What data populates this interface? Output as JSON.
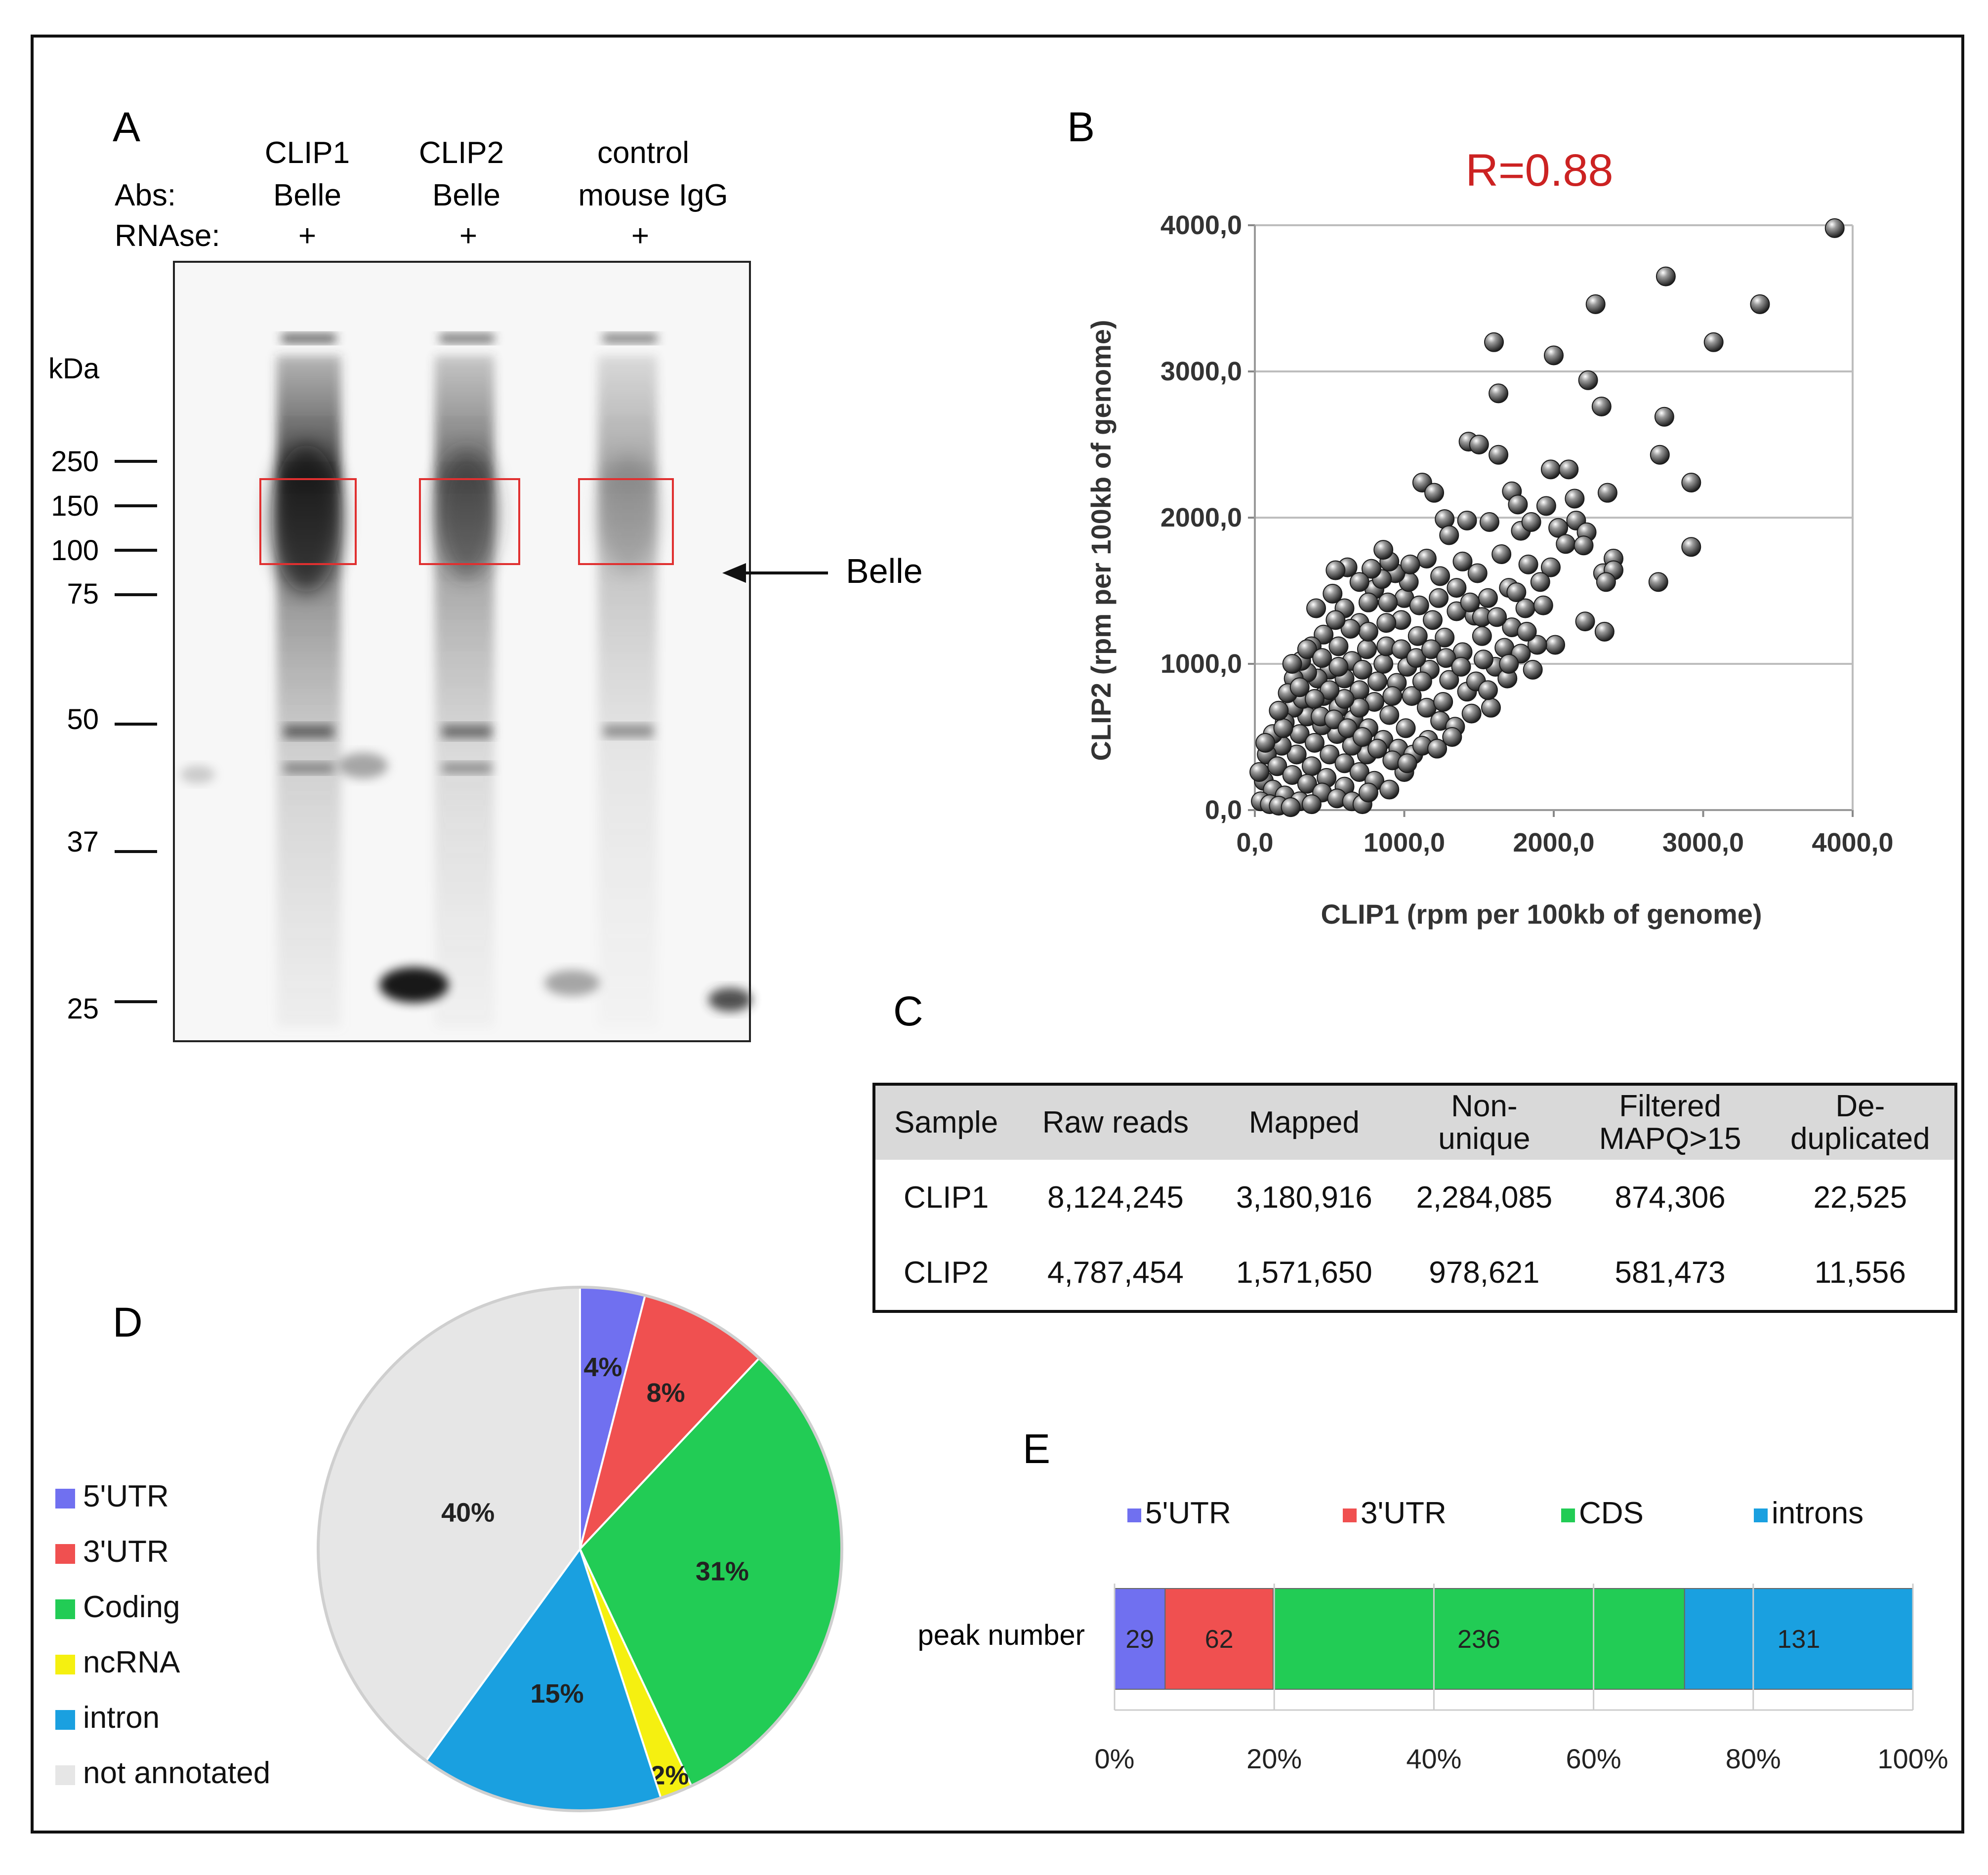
{
  "panels": {
    "a": "A",
    "b": "B",
    "c": "C",
    "d": "D",
    "e": "E"
  },
  "gel": {
    "row_labels": [
      "Abs:",
      "RNAse:"
    ],
    "lanes": [
      {
        "top": "CLIP1",
        "antibody": "Belle",
        "rnase": "+"
      },
      {
        "top": "CLIP2",
        "antibody": "Belle",
        "rnase": "+"
      },
      {
        "top": "control",
        "antibody": "mouse IgG",
        "rnase": "+"
      }
    ],
    "kda_label": "kDa",
    "markers": [
      "250",
      "150",
      "100",
      "75",
      "50",
      "37",
      "25"
    ],
    "arrow_label": "Belle",
    "highlight_color": "#e03030"
  },
  "chart_data": [
    {
      "type": "scatter",
      "panel": "B",
      "title": "R=0.88",
      "title_color": "#cc2222",
      "xlabel": "CLIP1 (rpm per 100kb of genome)",
      "ylabel": "CLIP2 (rpm per 100kb of genome)",
      "xlim": [
        0,
        4000
      ],
      "ylim": [
        0,
        4000
      ],
      "xticks": [
        "0,0",
        "1000,0",
        "2000,0",
        "3000,0",
        "4000,0"
      ],
      "yticks": [
        "0,0",
        "1000,0",
        "2000,0",
        "3000,0",
        "4000,0"
      ],
      "grid": true,
      "points": [
        [
          3880,
          3980
        ],
        [
          2750,
          3650
        ],
        [
          2280,
          3460
        ],
        [
          3380,
          3460
        ],
        [
          1600,
          3200
        ],
        [
          3070,
          3200
        ],
        [
          2000,
          3110
        ],
        [
          1630,
          2850
        ],
        [
          2230,
          2940
        ],
        [
          2320,
          2760
        ],
        [
          2740,
          2690
        ],
        [
          1430,
          2520
        ],
        [
          1500,
          2500
        ],
        [
          1630,
          2430
        ],
        [
          2710,
          2430
        ],
        [
          2920,
          2240
        ],
        [
          1980,
          2330
        ],
        [
          1720,
          2180
        ],
        [
          1760,
          2090
        ],
        [
          2100,
          2330
        ],
        [
          2140,
          2130
        ],
        [
          2360,
          2170
        ],
        [
          1120,
          2240
        ],
        [
          1200,
          2170
        ],
        [
          2030,
          1930
        ],
        [
          2150,
          1980
        ],
        [
          2220,
          1900
        ],
        [
          2080,
          1820
        ],
        [
          2200,
          1810
        ],
        [
          2330,
          1620
        ],
        [
          2400,
          1720
        ],
        [
          2920,
          1800
        ],
        [
          2700,
          1560
        ],
        [
          2400,
          1640
        ],
        [
          1980,
          1660
        ],
        [
          2350,
          1560
        ],
        [
          2210,
          1290
        ],
        [
          2340,
          1220
        ],
        [
          1830,
          1680
        ],
        [
          1910,
          1560
        ],
        [
          2010,
          1130
        ],
        [
          1890,
          1130
        ],
        [
          1270,
          1990
        ],
        [
          1420,
          1980
        ],
        [
          1570,
          1970
        ],
        [
          1300,
          1880
        ],
        [
          1780,
          1910
        ],
        [
          1000,
          1450
        ],
        [
          1150,
          1720
        ],
        [
          1240,
          1600
        ],
        [
          1390,
          1700
        ],
        [
          1490,
          1620
        ],
        [
          1650,
          1750
        ],
        [
          1700,
          1520
        ],
        [
          1350,
          1360
        ],
        [
          1470,
          1330
        ],
        [
          1560,
          1450
        ],
        [
          1720,
          1250
        ],
        [
          1810,
          1380
        ],
        [
          1270,
          1180
        ],
        [
          1390,
          1080
        ],
        [
          1520,
          1190
        ],
        [
          1610,
          980
        ],
        [
          1690,
          900
        ],
        [
          1580,
          700
        ],
        [
          1420,
          810
        ],
        [
          1300,
          890
        ],
        [
          1170,
          960
        ],
        [
          1090,
          1190
        ],
        [
          980,
          1300
        ],
        [
          890,
          1420
        ],
        [
          800,
          1510
        ],
        [
          700,
          1280
        ],
        [
          600,
          1380
        ],
        [
          520,
          1480
        ],
        [
          410,
          1380
        ],
        [
          560,
          1120
        ],
        [
          650,
          1020
        ],
        [
          750,
          1100
        ],
        [
          860,
          1000
        ],
        [
          950,
          870
        ],
        [
          1050,
          780
        ],
        [
          1150,
          700
        ],
        [
          1240,
          610
        ],
        [
          1340,
          570
        ],
        [
          1450,
          660
        ],
        [
          900,
          650
        ],
        [
          800,
          740
        ],
        [
          700,
          820
        ],
        [
          600,
          900
        ],
        [
          500,
          960
        ],
        [
          420,
          900
        ],
        [
          350,
          940
        ],
        [
          460,
          780
        ],
        [
          560,
          700
        ],
        [
          660,
          620
        ],
        [
          760,
          560
        ],
        [
          860,
          480
        ],
        [
          960,
          420
        ],
        [
          1060,
          380
        ],
        [
          1160,
          480
        ],
        [
          1010,
          560
        ],
        [
          750,
          380
        ],
        [
          650,
          440
        ],
        [
          550,
          520
        ],
        [
          450,
          580
        ],
        [
          350,
          640
        ],
        [
          260,
          700
        ],
        [
          200,
          600
        ],
        [
          300,
          520
        ],
        [
          400,
          460
        ],
        [
          500,
          380
        ],
        [
          600,
          320
        ],
        [
          700,
          260
        ],
        [
          800,
          200
        ],
        [
          900,
          140
        ],
        [
          1000,
          260
        ],
        [
          600,
          160
        ],
        [
          480,
          220
        ],
        [
          380,
          300
        ],
        [
          280,
          380
        ],
        [
          180,
          440
        ],
        [
          120,
          520
        ],
        [
          80,
          380
        ],
        [
          150,
          300
        ],
        [
          250,
          240
        ],
        [
          350,
          180
        ],
        [
          450,
          120
        ],
        [
          550,
          80
        ],
        [
          650,
          60
        ],
        [
          720,
          40
        ],
        [
          760,
          120
        ],
        [
          60,
          200
        ],
        [
          120,
          140
        ],
        [
          200,
          100
        ],
        [
          300,
          60
        ],
        [
          380,
          40
        ],
        [
          40,
          60
        ],
        [
          100,
          40
        ],
        [
          160,
          30
        ],
        [
          240,
          20
        ],
        [
          30,
          260
        ],
        [
          70,
          460
        ],
        [
          190,
          560
        ],
        [
          320,
          760
        ],
        [
          440,
          640
        ],
        [
          530,
          620
        ],
        [
          620,
          560
        ],
        [
          720,
          500
        ],
        [
          820,
          420
        ],
        [
          920,
          340
        ],
        [
          1020,
          320
        ],
        [
          1120,
          440
        ],
        [
          1220,
          420
        ],
        [
          1320,
          500
        ],
        [
          1260,
          740
        ],
        [
          1120,
          880
        ],
        [
          1020,
          980
        ],
        [
          880,
          1120
        ],
        [
          760,
          1220
        ],
        [
          640,
          1240
        ],
        [
          540,
          1300
        ],
        [
          460,
          1200
        ],
        [
          380,
          1120
        ],
        [
          310,
          1020
        ],
        [
          260,
          900
        ],
        [
          220,
          800
        ],
        [
          160,
          680
        ],
        [
          880,
          1280
        ],
        [
          980,
          1100
        ],
        [
          1080,
          1040
        ],
        [
          1180,
          1100
        ],
        [
          1280,
          1040
        ],
        [
          1380,
          980
        ],
        [
          1480,
          880
        ],
        [
          1560,
          820
        ],
        [
          1190,
          1300
        ],
        [
          1100,
          1400
        ],
        [
          1030,
          1560
        ],
        [
          940,
          1620
        ],
        [
          850,
          1580
        ],
        [
          760,
          1420
        ],
        [
          1230,
          1450
        ],
        [
          1350,
          1520
        ],
        [
          1440,
          1420
        ],
        [
          1520,
          1320
        ],
        [
          1620,
          1320
        ],
        [
          1670,
          1110
        ],
        [
          1780,
          1070
        ],
        [
          1860,
          960
        ],
        [
          1530,
          1030
        ],
        [
          1820,
          1220
        ],
        [
          1930,
          1400
        ],
        [
          1750,
          1490
        ],
        [
          1950,
          2080
        ],
        [
          1850,
          1970
        ],
        [
          1700,
          1000
        ],
        [
          780,
          1650
        ],
        [
          900,
          1700
        ],
        [
          1040,
          1680
        ],
        [
          860,
          1780
        ],
        [
          700,
          1560
        ],
        [
          620,
          1660
        ],
        [
          540,
          1640
        ],
        [
          720,
          960
        ],
        [
          820,
          880
        ],
        [
          920,
          780
        ],
        [
          700,
          700
        ],
        [
          600,
          760
        ],
        [
          500,
          820
        ],
        [
          400,
          760
        ],
        [
          300,
          840
        ],
        [
          250,
          1000
        ],
        [
          350,
          1100
        ],
        [
          450,
          1040
        ],
        [
          560,
          980
        ]
      ]
    },
    {
      "type": "pie",
      "panel": "D",
      "slices": [
        {
          "label": "5'UTR",
          "value": 4,
          "text": "4%",
          "color": "#7070f0"
        },
        {
          "label": "3'UTR",
          "value": 8,
          "text": "8%",
          "color": "#f05050"
        },
        {
          "label": "Coding",
          "value": 31,
          "text": "31%",
          "color": "#22cc55"
        },
        {
          "label": "ncRNA",
          "value": 2,
          "text": "2%",
          "color": "#f5f010"
        },
        {
          "label": "intron",
          "value": 15,
          "text": "15%",
          "color": "#1aa0e0"
        },
        {
          "label": "not annotated",
          "value": 40,
          "text": "40%",
          "color": "#e6e6e6"
        }
      ],
      "legend": "left"
    },
    {
      "type": "bar",
      "orientation": "horizontal",
      "stacked": "percent",
      "panel": "E",
      "categories": [
        "peak number"
      ],
      "series": [
        {
          "name": "5'UTR",
          "values": [
            29
          ],
          "color": "#7070f0"
        },
        {
          "name": "3'UTR",
          "values": [
            62
          ],
          "color": "#f05050"
        },
        {
          "name": "CDS",
          "values": [
            236
          ],
          "color": "#22cc55"
        },
        {
          "name": "introns",
          "values": [
            131
          ],
          "color": "#1aa0e0"
        }
      ],
      "xticks": [
        "0%",
        "20%",
        "40%",
        "60%",
        "80%",
        "100%"
      ],
      "xlim": [
        0,
        100
      ],
      "legend": "top"
    }
  ],
  "table": {
    "headers": [
      [
        "Sample"
      ],
      [
        "Raw reads"
      ],
      [
        "Mapped"
      ],
      [
        "Non-",
        "unique"
      ],
      [
        "Filtered",
        "MAPQ>15"
      ],
      [
        "De-",
        "duplicated"
      ]
    ],
    "rows": [
      [
        "CLIP1",
        "8,124,245",
        "3,180,916",
        "2,284,085",
        "874,306",
        "22,525"
      ],
      [
        "CLIP2",
        "4,787,454",
        "1,571,650",
        "978,621",
        "581,473",
        "11,556"
      ]
    ]
  }
}
